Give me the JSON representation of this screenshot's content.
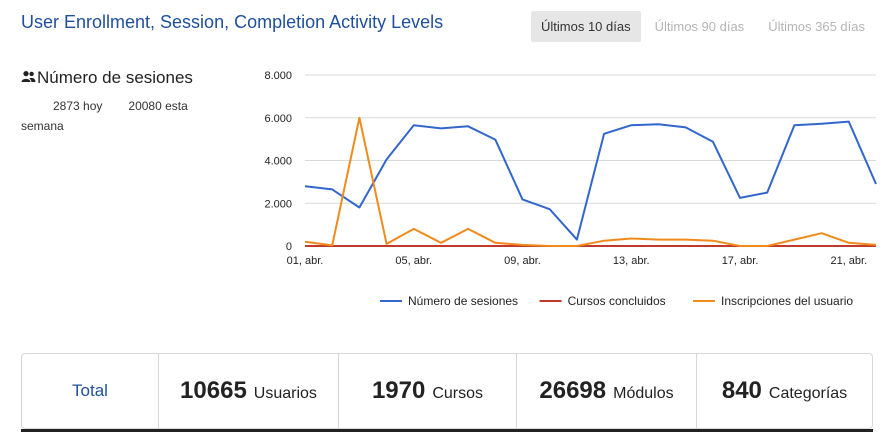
{
  "title": "User Enrollment, Session, Completion Activity Levels",
  "range_tabs": [
    {
      "label": "Últimos 10 días",
      "active": true
    },
    {
      "label": "Últimos 90 días",
      "active": false
    },
    {
      "label": "Últimos 365 días",
      "active": false
    }
  ],
  "metric": {
    "icon": "users-icon",
    "title": "Número de sesiones",
    "today_value": "2873 hoy",
    "week_value": "20080 esta semana"
  },
  "chart_data": {
    "type": "line",
    "x": [
      "01, abr.",
      "02, abr.",
      "03, abr.",
      "04, abr.",
      "05, abr.",
      "06, abr.",
      "07, abr.",
      "08, abr.",
      "09, abr.",
      "10, abr.",
      "11, abr.",
      "12, abr.",
      "13, abr.",
      "14, abr.",
      "15, abr.",
      "16, abr.",
      "17, abr.",
      "18, abr.",
      "19, abr.",
      "20, abr.",
      "21, abr.",
      "22, abr."
    ],
    "tick_labels": [
      "01, abr.",
      "05, abr.",
      "09, abr.",
      "13, abr.",
      "17, abr.",
      "21, abr."
    ],
    "y_ticks": [
      "0",
      "2.000",
      "4.000",
      "6.000",
      "8.000"
    ],
    "ylim": [
      0,
      8000
    ],
    "grid": true,
    "legend_position": "bottom",
    "series": [
      {
        "name": "Número de sesiones",
        "color": "#3366cc",
        "values": [
          2800,
          2650,
          1800,
          4050,
          5650,
          5500,
          5600,
          4980,
          2180,
          1720,
          300,
          5250,
          5650,
          5700,
          5550,
          4880,
          2250,
          2500,
          5650,
          5720,
          5820,
          2900
        ]
      },
      {
        "name": "Cursos concluidos",
        "color": "#c0392b",
        "values": [
          0,
          0,
          0,
          0,
          0,
          0,
          0,
          0,
          0,
          0,
          0,
          0,
          0,
          0,
          0,
          0,
          0,
          0,
          0,
          0,
          0,
          0
        ]
      },
      {
        "name": "Inscripciones del usuario",
        "color": "#f08a1c",
        "values": [
          200,
          30,
          6000,
          100,
          800,
          150,
          800,
          150,
          50,
          0,
          0,
          250,
          350,
          300,
          300,
          250,
          0,
          0,
          300,
          600,
          150,
          50
        ]
      }
    ]
  },
  "stats": {
    "total_label": "Total",
    "users": {
      "value": "10665",
      "label": "Usuarios"
    },
    "courses": {
      "value": "1970",
      "label": "Cursos"
    },
    "modules": {
      "value": "26698",
      "label": "Módulos"
    },
    "categories": {
      "value": "840",
      "label": "Categorías"
    }
  }
}
